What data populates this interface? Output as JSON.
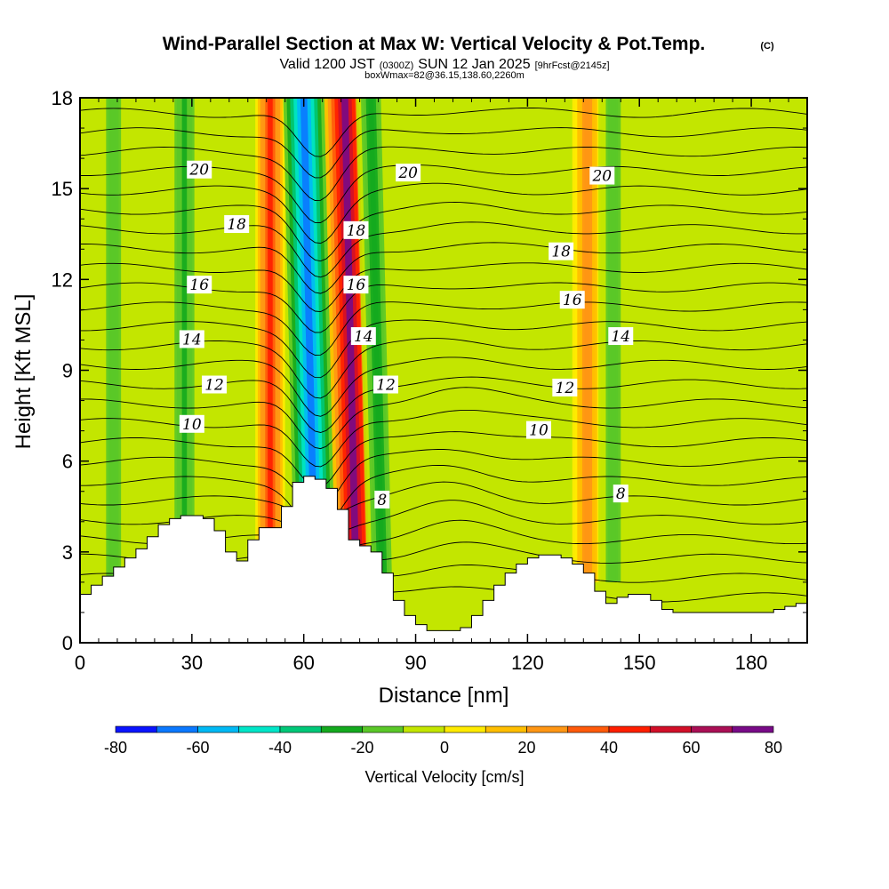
{
  "header": {
    "title": "Wind-Parallel Section at Max W: Vertical Velocity & Pot.Temp.",
    "copyright": "(C)",
    "valid_prefix": "Valid 1200 JST",
    "valid_utc": "(0300Z)",
    "valid_day": "SUN 12 Jan 2025",
    "forecast": "[9hrFcst@2145z]",
    "box_info": "boxWmax=82@36.15,138.60,2260m"
  },
  "chart_data": {
    "type": "heatmap",
    "title": "Wind-Parallel Section at Max W: Vertical Velocity & Pot.Temp.",
    "xlabel": "Distance [nm]",
    "ylabel": "Height [Kft MSL]",
    "xlim": [
      0,
      195
    ],
    "ylim": [
      0,
      18
    ],
    "x_ticks": [
      0,
      30,
      60,
      90,
      120,
      150,
      180
    ],
    "y_ticks": [
      0,
      3,
      6,
      9,
      12,
      15,
      18
    ],
    "colorbar": {
      "label": "Vertical Velocity [cm/s]",
      "ticks": [
        -80,
        -60,
        -40,
        -20,
        0,
        20,
        40,
        60,
        80
      ],
      "levels": [
        -80,
        -70,
        -60,
        -50,
        -40,
        -30,
        -20,
        -10,
        0,
        10,
        20,
        30,
        40,
        50,
        60,
        70,
        80
      ],
      "colors": [
        "#0a14ff",
        "#0a78ff",
        "#00b9f5",
        "#00e6c8",
        "#00c878",
        "#14aa1e",
        "#5ac828",
        "#c3e600",
        "#ffeb00",
        "#ffbe00",
        "#ff9614",
        "#ff5a0a",
        "#ff1e00",
        "#d20f28",
        "#aa0f55",
        "#780a87"
      ]
    },
    "updraft_max_cm_s": 82,
    "terrain_profile": {
      "distance_nm": [
        0,
        3,
        6,
        9,
        12,
        15,
        18,
        21,
        24,
        27,
        30,
        33,
        36,
        39,
        42,
        45,
        48,
        51,
        54,
        57,
        60,
        63,
        66,
        69,
        72,
        75,
        78,
        81,
        84,
        87,
        90,
        93,
        96,
        99,
        102,
        105,
        108,
        111,
        114,
        117,
        120,
        123,
        126,
        129,
        132,
        135,
        138,
        141,
        144,
        147,
        150,
        153,
        156,
        159,
        162,
        165,
        168,
        171,
        174,
        177,
        180,
        183,
        186,
        189,
        192,
        195
      ],
      "height_kft": [
        1.6,
        1.9,
        2.2,
        2.5,
        2.8,
        3.1,
        3.5,
        3.9,
        4.1,
        4.2,
        4.2,
        4.1,
        3.7,
        3.0,
        2.7,
        3.4,
        3.8,
        3.8,
        4.5,
        5.3,
        5.5,
        5.4,
        5.1,
        4.4,
        3.4,
        3.2,
        3.0,
        2.3,
        1.4,
        0.9,
        0.6,
        0.4,
        0.4,
        0.4,
        0.5,
        0.9,
        1.4,
        1.9,
        2.3,
        2.6,
        2.8,
        2.9,
        2.9,
        2.8,
        2.6,
        2.3,
        1.7,
        1.3,
        1.5,
        1.6,
        1.6,
        1.4,
        1.1,
        1.0,
        1.0,
        1.0,
        1.0,
        1.0,
        1.0,
        1.0,
        1.0,
        1.0,
        1.1,
        1.2,
        1.3,
        1.3
      ]
    },
    "w_bands": [
      {
        "label": "downdraft",
        "x_nm": 9.0,
        "w_cm_s": -22
      },
      {
        "label": "downdraft",
        "x_nm": 28.0,
        "w_cm_s": -24
      },
      {
        "label": "updraft",
        "x_nm": 51.0,
        "w_cm_s": 48
      },
      {
        "label": "downdraft core",
        "x_nm": 60.0,
        "w_cm_s": -70
      },
      {
        "label": "updraft core",
        "x_nm": 71.0,
        "w_cm_s": 82
      },
      {
        "label": "downdraft",
        "x_nm": 78.0,
        "w_cm_s": -30
      },
      {
        "label": "updraft",
        "x_nm": 136.0,
        "w_cm_s": 30
      },
      {
        "label": "downdraft",
        "x_nm": 143.0,
        "w_cm_s": -22
      }
    ],
    "theta_contour_labels": [
      {
        "value": "20",
        "x_nm": 32,
        "y_kft": 15.6
      },
      {
        "value": "20",
        "x_nm": 88,
        "y_kft": 15.5
      },
      {
        "value": "20",
        "x_nm": 140,
        "y_kft": 15.4
      },
      {
        "value": "18",
        "x_nm": 42,
        "y_kft": 13.8
      },
      {
        "value": "18",
        "x_nm": 74,
        "y_kft": 13.6
      },
      {
        "value": "18",
        "x_nm": 129,
        "y_kft": 12.9
      },
      {
        "value": "16",
        "x_nm": 32,
        "y_kft": 11.8
      },
      {
        "value": "16",
        "x_nm": 74,
        "y_kft": 11.8
      },
      {
        "value": "16",
        "x_nm": 132,
        "y_kft": 11.3
      },
      {
        "value": "14",
        "x_nm": 30,
        "y_kft": 10.0
      },
      {
        "value": "14",
        "x_nm": 76,
        "y_kft": 10.1
      },
      {
        "value": "14",
        "x_nm": 145,
        "y_kft": 10.1
      },
      {
        "value": "12",
        "x_nm": 36,
        "y_kft": 8.5
      },
      {
        "value": "12",
        "x_nm": 82,
        "y_kft": 8.5
      },
      {
        "value": "12",
        "x_nm": 130,
        "y_kft": 8.4
      },
      {
        "value": "10",
        "x_nm": 30,
        "y_kft": 7.2
      },
      {
        "value": "10",
        "x_nm": 123,
        "y_kft": 7.0
      },
      {
        "value": "8",
        "x_nm": 81,
        "y_kft": 4.7
      },
      {
        "value": "8",
        "x_nm": 145,
        "y_kft": 4.9
      }
    ]
  }
}
